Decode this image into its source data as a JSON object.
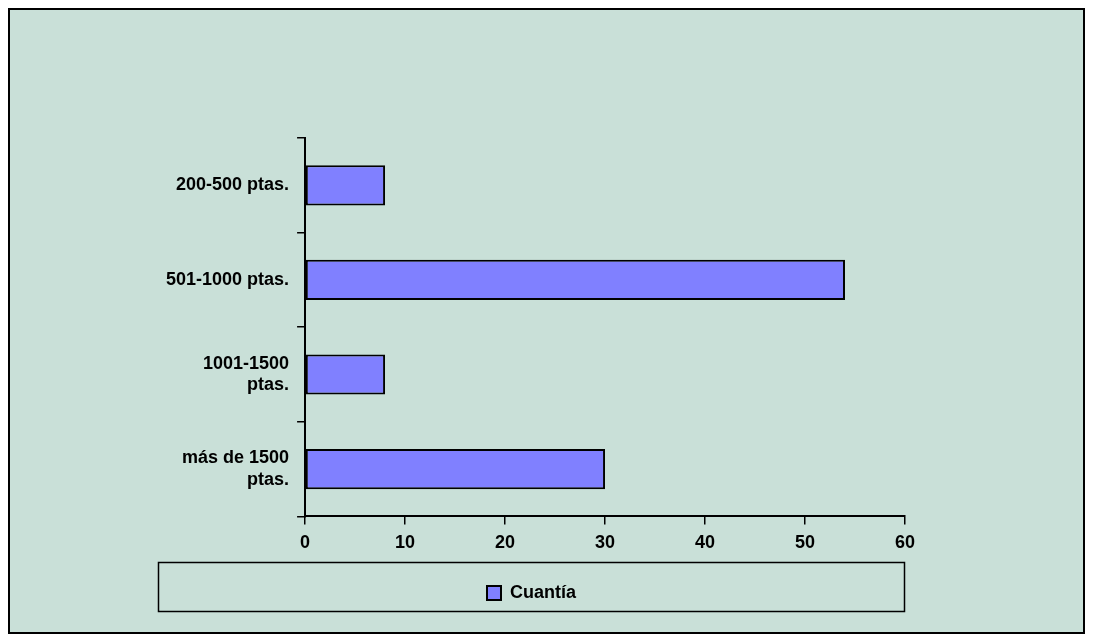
{
  "chart_data": {
    "type": "bar",
    "orientation": "horizontal",
    "categories": [
      "200-500 ptas.",
      "501-1000 ptas.",
      "1001-1500 ptas.",
      "más de 1500 ptas."
    ],
    "series": [
      {
        "name": "Cuantía",
        "color": "#8080ff",
        "values": [
          8,
          54,
          8,
          30
        ]
      }
    ],
    "xlim": [
      0,
      60
    ],
    "xticks": [
      0,
      10,
      20,
      30,
      40,
      50,
      60
    ],
    "grid": false,
    "legend": "bottom"
  }
}
